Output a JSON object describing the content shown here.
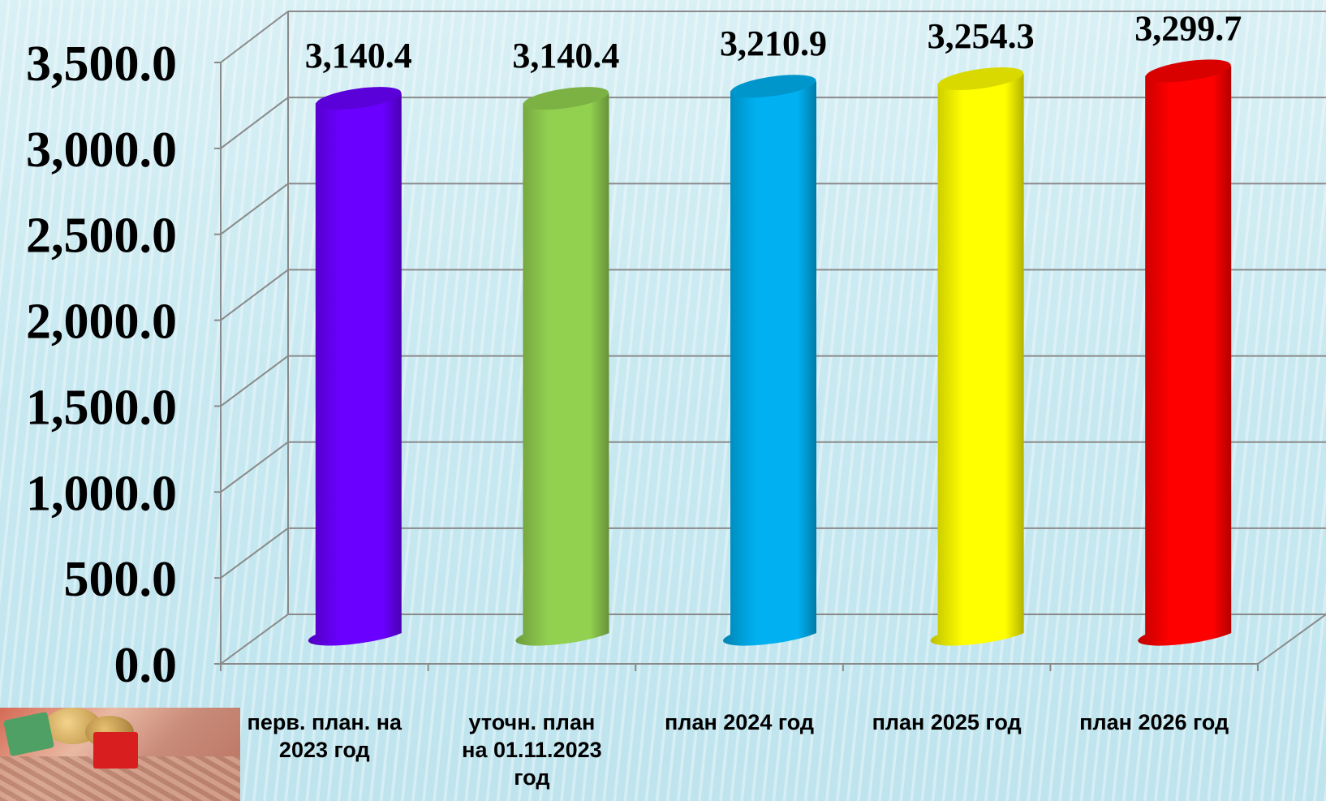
{
  "chart_data": {
    "type": "bar",
    "categories": [
      "перв. план. на 2023 год",
      "уточн. план на 01.11.2023 год",
      "план 2024 год",
      "план 2025 год",
      "план 2026 год"
    ],
    "category_lines": [
      [
        "перв. план. на",
        "2023 год"
      ],
      [
        "уточн. план",
        "на 01.11.2023",
        "год"
      ],
      [
        "план 2024 год"
      ],
      [
        "план 2025 год"
      ],
      [
        "план 2026 год"
      ]
    ],
    "values": [
      3140.4,
      3140.4,
      3210.9,
      3254.3,
      3299.7
    ],
    "data_labels": [
      "3,140.4",
      "3,140.4",
      "3,210.9",
      "3,254.3",
      "3,299.7"
    ],
    "y_ticks": [
      "0.0",
      "500.0",
      "1,000.0",
      "1,500.0",
      "2,000.0",
      "2,500.0",
      "3,000.0",
      "3,500.0"
    ],
    "ylim": [
      0,
      3500
    ],
    "grid": true,
    "bar_style": "3d-cylinder",
    "colors": [
      "#6a00ff",
      "#92d050",
      "#00b0f0",
      "#ffff00",
      "#ff0000"
    ]
  }
}
